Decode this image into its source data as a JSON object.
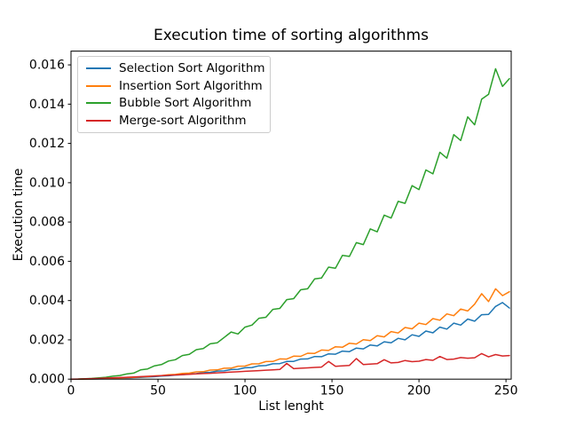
{
  "chart_data": {
    "type": "line",
    "title": "Execution time of sorting algorithms",
    "xlabel": "List lenght",
    "ylabel": "Execution time",
    "xlim": [
      0,
      253
    ],
    "ylim": [
      0,
      0.0167
    ],
    "xtick_values": [
      0,
      50,
      100,
      150,
      200,
      250
    ],
    "xtick_labels": [
      "0",
      "50",
      "100",
      "150",
      "200",
      "250"
    ],
    "ytick_values": [
      0,
      0.002,
      0.004,
      0.006,
      0.008,
      0.01,
      0.012,
      0.014,
      0.016
    ],
    "ytick_labels": [
      "0.000",
      "0.002",
      "0.004",
      "0.006",
      "0.008",
      "0.010",
      "0.012",
      "0.014",
      "0.016"
    ],
    "grid": false,
    "legend_location": "upper-left",
    "x": [
      0,
      4,
      8,
      12,
      16,
      20,
      24,
      28,
      32,
      36,
      40,
      44,
      48,
      52,
      56,
      60,
      64,
      68,
      72,
      76,
      80,
      84,
      88,
      92,
      96,
      100,
      104,
      108,
      112,
      116,
      120,
      124,
      128,
      132,
      136,
      140,
      144,
      148,
      152,
      156,
      160,
      164,
      168,
      172,
      176,
      180,
      184,
      188,
      192,
      196,
      200,
      204,
      208,
      212,
      216,
      220,
      224,
      228,
      232,
      236,
      240,
      244,
      248,
      252
    ],
    "series": [
      {
        "name": "Selection Sort Algorithm",
        "color": "#1f77b4",
        "values": [
          0,
          1e-06,
          4e-06,
          8e-06,
          1.4e-05,
          2.3e-05,
          3.1e-05,
          4.6e-05,
          5.5e-05,
          7.5e-05,
          8.8e-05,
          0.000112,
          0.000125,
          0.000158,
          0.00017,
          0.00021,
          0.000222,
          0.000268,
          0.000282,
          0.000335,
          0.000348,
          0.00041,
          0.000422,
          0.00049,
          0.0005,
          0.00058,
          0.00059,
          0.00068,
          0.00069,
          0.00078,
          0.00079,
          0.0009,
          0.000905,
          0.00102,
          0.00103,
          0.00115,
          0.001145,
          0.00129,
          0.00127,
          0.00143,
          0.0014,
          0.00158,
          0.00154,
          0.00174,
          0.00169,
          0.0019,
          0.00185,
          0.00208,
          0.002,
          0.00226,
          0.00218,
          0.00245,
          0.00236,
          0.00265,
          0.00255,
          0.00285,
          0.00275,
          0.00306,
          0.00295,
          0.00328,
          0.0033,
          0.0037,
          0.0039,
          0.00362
        ]
      },
      {
        "name": "Insertion Sort Algorithm",
        "color": "#ff7f0e",
        "values": [
          0,
          1e-06,
          5e-06,
          1e-05,
          1.8e-05,
          2.7e-05,
          4.2e-05,
          5.2e-05,
          7.5e-05,
          8.6e-05,
          0.000118,
          0.000128,
          0.000168,
          0.00018,
          0.000228,
          0.00024,
          0.000295,
          0.000305,
          0.000372,
          0.00038,
          0.00046,
          0.000468,
          0.000555,
          0.00056,
          0.00066,
          0.000665,
          0.000775,
          0.00078,
          0.000895,
          0.0009,
          0.00103,
          0.00102,
          0.00117,
          0.00116,
          0.00132,
          0.00131,
          0.00148,
          0.00146,
          0.00165,
          0.00162,
          0.00183,
          0.00179,
          0.00201,
          0.00196,
          0.00221,
          0.00215,
          0.00242,
          0.00235,
          0.00263,
          0.00256,
          0.00285,
          0.00278,
          0.00308,
          0.003,
          0.00332,
          0.00323,
          0.00357,
          0.00347,
          0.00382,
          0.00435,
          0.00395,
          0.0046,
          0.00425,
          0.00445
        ]
      },
      {
        "name": "Bubble Sort Algorithm",
        "color": "#2ca02c",
        "values": [
          0,
          4e-06,
          1.6e-05,
          3.6e-05,
          6.5e-05,
          9.5e-05,
          0.000147,
          0.000185,
          0.000262,
          0.000305,
          0.00047,
          0.00052,
          0.00068,
          0.00074,
          0.00092,
          0.00099,
          0.0012,
          0.00126,
          0.0015,
          0.00156,
          0.0018,
          0.00185,
          0.00212,
          0.0024,
          0.0023,
          0.00265,
          0.00275,
          0.0031,
          0.00315,
          0.00355,
          0.0036,
          0.00405,
          0.0041,
          0.00455,
          0.0046,
          0.0051,
          0.00515,
          0.0057,
          0.00565,
          0.0063,
          0.00625,
          0.00695,
          0.00685,
          0.00765,
          0.0075,
          0.00835,
          0.0082,
          0.00905,
          0.00895,
          0.00985,
          0.00965,
          0.01065,
          0.01045,
          0.01155,
          0.01125,
          0.01245,
          0.01215,
          0.01335,
          0.01295,
          0.01425,
          0.0145,
          0.0158,
          0.0149,
          0.0153
        ]
      },
      {
        "name": "Merge-sort Algorithm",
        "color": "#d62728",
        "values": [
          0,
          5e-06,
          1.4e-05,
          2.6e-05,
          3.8e-05,
          5.2e-05,
          6.6e-05,
          8e-05,
          9.5e-05,
          0.000111,
          0.000127,
          0.000143,
          0.00016,
          0.000177,
          0.000194,
          0.000211,
          0.000229,
          0.000247,
          0.000265,
          0.000283,
          0.0003,
          0.00032,
          0.00034,
          0.000358,
          0.000377,
          0.000396,
          0.000415,
          0.000435,
          0.000455,
          0.000474,
          0.000494,
          0.0008,
          0.000534,
          0.000555,
          0.000575,
          0.000595,
          0.000616,
          0.0009,
          0.000657,
          0.000678,
          0.000699,
          0.00105,
          0.000741,
          0.000762,
          0.000784,
          0.00099,
          0.000826,
          0.000848,
          0.00095,
          0.000891,
          0.000912,
          0.001,
          0.000956,
          0.00115,
          0.001,
          0.001022,
          0.0011,
          0.001066,
          0.001088,
          0.0013,
          0.001133,
          0.00125,
          0.001178,
          0.0012
        ]
      }
    ]
  }
}
